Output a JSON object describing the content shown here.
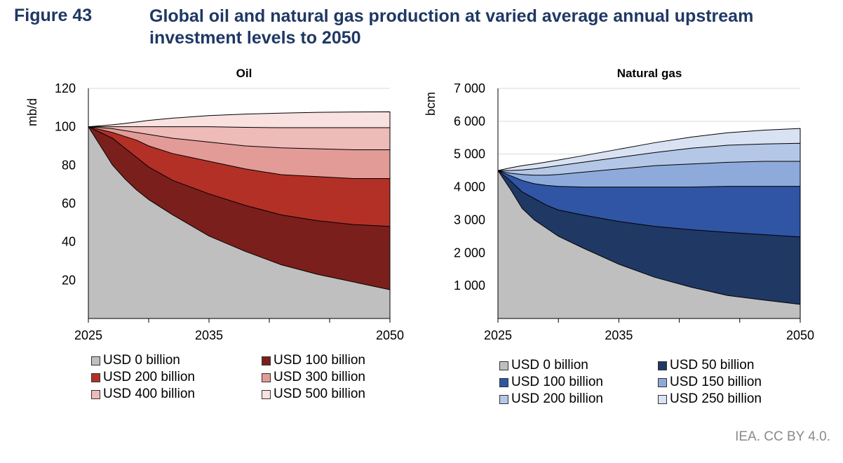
{
  "figure": {
    "label": "Figure 43",
    "title": "Global oil and natural gas production at varied average annual upstream investment levels to 2050"
  },
  "credit": "IEA. CC BY 4.0.",
  "chart_data": [
    {
      "type": "area",
      "title": "Oil",
      "ylabel": "mb/d",
      "xlabel": "",
      "ylim": [
        0,
        120
      ],
      "yticks": [
        20,
        40,
        60,
        80,
        100,
        120
      ],
      "ytick_labels": [
        "20",
        "40",
        "60",
        "80",
        "100",
        "120"
      ],
      "xlim": [
        2025,
        2050
      ],
      "xtick_labels": [
        "2025",
        "2035",
        "2050"
      ],
      "xtick_values": [
        2025,
        2035,
        2050
      ],
      "x": [
        2025,
        2026,
        2027,
        2028,
        2029,
        2030,
        2032,
        2035,
        2038,
        2041,
        2044,
        2047,
        2050
      ],
      "series": [
        {
          "name": "USD 0 billion",
          "color": "#bfbfbf",
          "values": [
            100,
            90,
            80,
            73,
            67,
            62,
            54,
            43,
            35,
            28,
            23,
            19,
            15
          ]
        },
        {
          "name": "USD 100 billion",
          "color": "#7b1f1c",
          "values": [
            100,
            97,
            94,
            89,
            84,
            79,
            72,
            65,
            59,
            54,
            51,
            49,
            48
          ]
        },
        {
          "name": "USD 200 billion",
          "color": "#b33027",
          "values": [
            100,
            98.5,
            97,
            95,
            93,
            90,
            86,
            82,
            78,
            75,
            74,
            73,
            73
          ]
        },
        {
          "name": "USD 300 billion",
          "color": "#e29b96",
          "values": [
            100,
            99.5,
            99,
            98,
            97,
            96,
            94,
            92,
            90,
            89,
            88.5,
            88,
            88
          ]
        },
        {
          "name": "USD 400 billion",
          "color": "#eebbb8",
          "values": [
            100,
            100,
            100,
            100,
            100,
            100,
            100,
            100,
            99.7,
            99.5,
            99.5,
            99.5,
            99.5
          ]
        },
        {
          "name": "USD 500 billion",
          "color": "#f8e1df",
          "values": [
            100,
            100.5,
            101,
            101.7,
            102.5,
            103.3,
            104.5,
            105.8,
            106.6,
            107.1,
            107.5,
            107.7,
            107.8
          ]
        }
      ]
    },
    {
      "type": "area",
      "title": "Natural gas",
      "ylabel": "bcm",
      "xlabel": "",
      "ylim": [
        0,
        7000
      ],
      "yticks": [
        1000,
        2000,
        3000,
        4000,
        5000,
        6000,
        7000
      ],
      "ytick_labels": [
        "1 000",
        "2 000",
        "3 000",
        "4 000",
        "5 000",
        "6 000",
        "7 000"
      ],
      "xlim": [
        2025,
        2050
      ],
      "xtick_labels": [
        "2025",
        "2035",
        "2050"
      ],
      "xtick_values": [
        2025,
        2035,
        2050
      ],
      "x": [
        2025,
        2026,
        2027,
        2028,
        2029,
        2030,
        2032,
        2035,
        2038,
        2041,
        2044,
        2047,
        2050
      ],
      "series": [
        {
          "name": "USD 0 billion",
          "color": "#bfbfbf",
          "values": [
            4500,
            3950,
            3350,
            3000,
            2750,
            2500,
            2150,
            1650,
            1250,
            950,
            700,
            560,
            430
          ]
        },
        {
          "name": "USD 50 billion",
          "color": "#203864",
          "values": [
            4500,
            4200,
            3850,
            3650,
            3450,
            3300,
            3150,
            2950,
            2800,
            2700,
            2620,
            2550,
            2480
          ]
        },
        {
          "name": "USD 100 billion",
          "color": "#2f55a4",
          "values": [
            4500,
            4350,
            4200,
            4100,
            4050,
            4020,
            4000,
            4000,
            4000,
            4000,
            4020,
            4020,
            4020
          ]
        },
        {
          "name": "USD 150 billion",
          "color": "#8eaadb",
          "values": [
            4500,
            4420,
            4380,
            4360,
            4360,
            4380,
            4450,
            4550,
            4650,
            4700,
            4750,
            4780,
            4780
          ]
        },
        {
          "name": "USD 200 billion",
          "color": "#b4c7e7",
          "values": [
            4500,
            4500,
            4520,
            4550,
            4600,
            4650,
            4750,
            4900,
            5050,
            5180,
            5270,
            5310,
            5330
          ]
        },
        {
          "name": "USD 250 billion",
          "color": "#d9e2f3",
          "values": [
            4500,
            4580,
            4650,
            4700,
            4760,
            4820,
            4950,
            5150,
            5350,
            5520,
            5650,
            5730,
            5780
          ]
        }
      ]
    }
  ]
}
